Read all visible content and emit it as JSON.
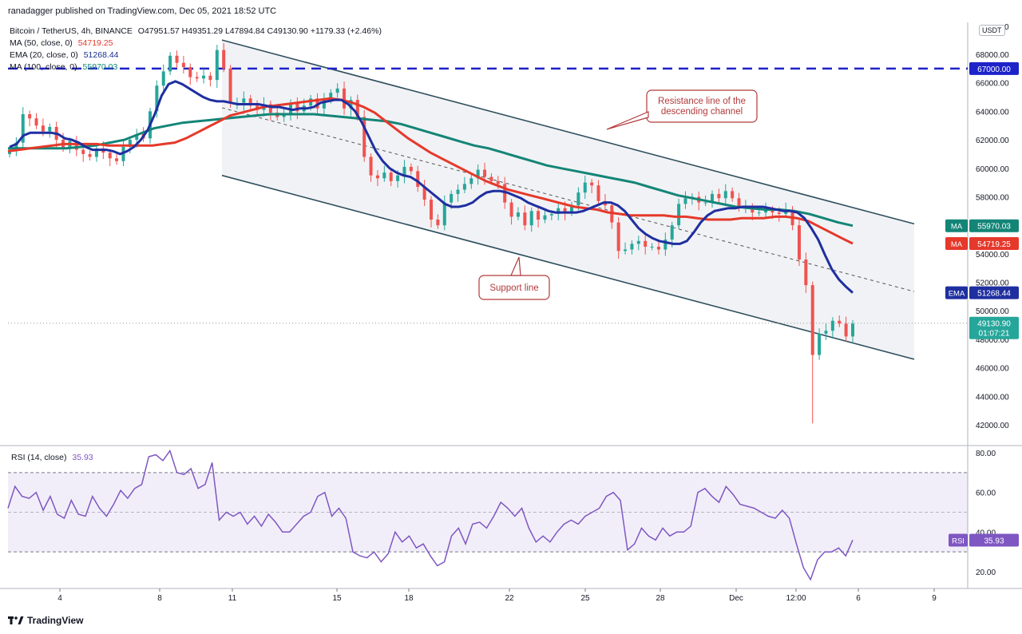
{
  "header": {
    "publisher": "ranadagger published on TradingView.com, Dec 05, 2021 18:52 UTC",
    "symbol": "Bitcoin / TetherUS, 4h, BINANCE",
    "ohlc": "O47951.57 H49351.29 L47894.84 C49130.90 +1179.33 (+2.46%)",
    "ma50_label": "MA (50, close, 0)",
    "ma50_value": "54719.25",
    "ema20_label": "EMA (20, close, 0)",
    "ema20_value": "51268.44",
    "ma100_label": "MA (100, close, 0)",
    "ma100_value": "55970.03",
    "rsi_label": "RSI (14, close)",
    "rsi_value": "35.93",
    "currency": "USDT",
    "footer": "TradingView"
  },
  "colors": {
    "ema20": "#1f2fa0",
    "ma50": "#e5392b",
    "ma100": "#138577",
    "bull": "#26a69a",
    "bear": "#ef5350",
    "channel": "#2f4f5f",
    "level": "#1d23c9",
    "rsi": "#7e57c2",
    "annotation": "#b23a3a"
  },
  "chart_data": {
    "type": "candlestick",
    "price_axis": {
      "ticks": [
        "42000.00",
        "44000.00",
        "46000.00",
        "48000.00",
        "50000.00",
        "52000.00",
        "54000.00",
        "56000.00",
        "58000.00",
        "60000.00",
        "62000.00",
        "64000.00",
        "66000.00",
        "68000.00"
      ],
      "range": [
        40500,
        70500
      ]
    },
    "time_axis": {
      "ticks": [
        "4",
        "8",
        "11",
        "15",
        "18",
        "22",
        "25",
        "28",
        "Dec",
        "12:00",
        "6",
        "9"
      ]
    },
    "rsi_axis": {
      "ticks": [
        "20.00",
        "40.00",
        "60.00",
        "80.00"
      ],
      "band": [
        30,
        70
      ]
    },
    "horizontal_level": {
      "value": 67000,
      "label": "67000.00"
    },
    "channel": {
      "upper": [
        [
          0,
          69000
        ],
        [
          1,
          56100
        ]
      ],
      "lower": [
        [
          0,
          59500
        ],
        [
          1,
          46600
        ]
      ],
      "mid": [
        [
          0,
          64250
        ],
        [
          1,
          51350
        ]
      ]
    },
    "annotations": [
      {
        "text": "Resistance line of the descending channel",
        "lines": [
          "Resistance line of the",
          "descending channel"
        ]
      },
      {
        "text": "Support line",
        "lines": [
          "Support line"
        ]
      }
    ],
    "last_price": {
      "value": 49130.9,
      "label": "49130.90",
      "countdown": "01:07:21"
    },
    "series_labels": [
      {
        "name": "MA",
        "value": "55970.03"
      },
      {
        "name": "MA",
        "value": "54719.25"
      },
      {
        "name": "EMA",
        "value": "51268.44"
      },
      {
        "name": "RSI",
        "value": "35.93"
      }
    ],
    "candles_close": [
      61200,
      61800,
      63800,
      63500,
      63000,
      62600,
      62900,
      62000,
      61400,
      61900,
      61300,
      61000,
      60800,
      61400,
      61100,
      60700,
      60500,
      61500,
      62000,
      62400,
      62100,
      64000,
      65800,
      66800,
      67900,
      67400,
      67100,
      66400,
      66300,
      66500,
      66200,
      68300,
      67000,
      64600,
      64600,
      64900,
      64400,
      64100,
      64500,
      63900,
      63600,
      63800,
      64600,
      64000,
      64400,
      64900,
      64200,
      64800,
      65300,
      65600,
      64200,
      64800,
      63600,
      60800,
      59500,
      59300,
      59700,
      59100,
      59500,
      60100,
      59800,
      58700,
      57800,
      56400,
      56000,
      57600,
      58200,
      58500,
      58900,
      59300,
      59900,
      59400,
      59100,
      58900,
      57600,
      56600,
      56900,
      56000,
      57000,
      56400,
      56700,
      56800,
      57200,
      56900,
      57400,
      58300,
      59000,
      58800,
      57700,
      57400,
      56200,
      54200,
      54300,
      54700,
      54900,
      54500,
      54500,
      54300,
      55000,
      56000,
      57500,
      57900,
      58000,
      57600,
      57600,
      58200,
      57900,
      58400,
      57900,
      57300,
      57300,
      56900,
      56900,
      57100,
      56900,
      56800,
      57100,
      56000,
      53600,
      51800,
      46900,
      48400,
      48600,
      49300,
      49100,
      48200,
      49100
    ],
    "ema20": [
      61500,
      61700,
      62300,
      62500,
      62500,
      62500,
      62500,
      62400,
      62100,
      62000,
      61800,
      61500,
      61300,
      61300,
      61300,
      61200,
      61000,
      61200,
      61500,
      62000,
      62700,
      63800,
      65100,
      65900,
      66100,
      65900,
      65600,
      65300,
      65000,
      64800,
      64700,
      64700,
      64600,
      64500,
      64500,
      64500,
      64500,
      64400,
      64300,
      64300,
      64200,
      64100,
      64200,
      64200,
      64300,
      64600,
      64700,
      64800,
      64800,
      64500,
      64000,
      63200,
      62200,
      61200,
      60500,
      60000,
      59700,
      59500,
      59400,
      59100,
      58700,
      58300,
      57900,
      57500,
      57300,
      57300,
      57400,
      57600,
      58000,
      58300,
      58400,
      58400,
      58300,
      58100,
      57900,
      57600,
      57400,
      57200,
      57000,
      56900,
      56900,
      56900,
      56900,
      57000,
      57200,
      57400,
      57600,
      57600,
      57400,
      57000,
      56400,
      55800,
      55400,
      55100,
      54900,
      54800,
      54700,
      54700,
      54900,
      55500,
      56200,
      56700,
      57000,
      57100,
      57200,
      57200,
      57300,
      57300,
      57300,
      57300,
      57200,
      57100,
      57000,
      57000,
      56900,
      56500,
      55800,
      55000,
      53900,
      52900,
      52200,
      51700,
      51268
    ],
    "ma50": [
      61200,
      61300,
      61400,
      61500,
      61600,
      61700,
      61700,
      61700,
      61700,
      61600,
      61600,
      61600,
      61600,
      61600,
      61700,
      61800,
      62100,
      62500,
      62900,
      63300,
      63700,
      63900,
      64100,
      64300,
      64400,
      64500,
      64600,
      64700,
      64800,
      64900,
      64800,
      64600,
      64300,
      63900,
      63300,
      62700,
      62100,
      61600,
      61100,
      60700,
      60300,
      59900,
      59500,
      59100,
      58800,
      58500,
      58300,
      58100,
      57900,
      57700,
      57500,
      57300,
      57200,
      57100,
      56900,
      56800,
      56700,
      56700,
      56700,
      56700,
      56600,
      56600,
      56500,
      56400,
      56400,
      56400,
      56500,
      56500,
      56500,
      56600,
      56600,
      56500,
      56300,
      55900,
      55500,
      55100,
      54719
    ],
    "ma100": [
      61400,
      61400,
      61400,
      61400,
      61400,
      61500,
      61600,
      61800,
      62000,
      62400,
      62800,
      63000,
      63200,
      63300,
      63400,
      63500,
      63600,
      63700,
      63800,
      63800,
      63800,
      63800,
      63700,
      63600,
      63500,
      63400,
      63300,
      63100,
      62800,
      62500,
      62200,
      61900,
      61600,
      61400,
      61100,
      60800,
      60500,
      60200,
      60000,
      59800,
      59600,
      59400,
      59200,
      59000,
      58700,
      58400,
      58100,
      57900,
      57700,
      57500,
      57300,
      57200,
      57100,
      57100,
      57000,
      56800,
      56500,
      56200,
      55970
    ],
    "rsi": [
      52,
      63,
      58,
      57,
      60,
      51,
      58,
      49,
      47,
      56,
      49,
      48,
      58,
      52,
      48,
      54,
      61,
      57,
      62,
      64,
      78,
      79,
      76,
      81,
      70,
      69,
      72,
      62,
      64,
      75,
      46,
      50,
      48,
      50,
      44,
      48,
      43,
      49,
      45,
      40,
      40,
      44,
      48,
      50,
      58,
      60,
      48,
      52,
      47,
      30,
      28,
      27,
      30,
      25,
      29,
      40,
      35,
      38,
      32,
      34,
      28,
      23,
      25,
      38,
      42,
      34,
      44,
      45,
      42,
      48,
      55,
      52,
      48,
      52,
      42,
      35,
      38,
      35,
      40,
      44,
      46,
      44,
      48,
      50,
      52,
      58,
      60,
      56,
      31,
      34,
      42,
      38,
      36,
      42,
      38,
      40,
      40,
      43,
      60,
      62,
      58,
      55,
      63,
      59,
      54,
      53,
      52,
      50,
      48,
      47,
      51,
      47,
      34,
      22,
      16,
      26,
      30,
      30,
      32,
      28,
      36
    ]
  }
}
